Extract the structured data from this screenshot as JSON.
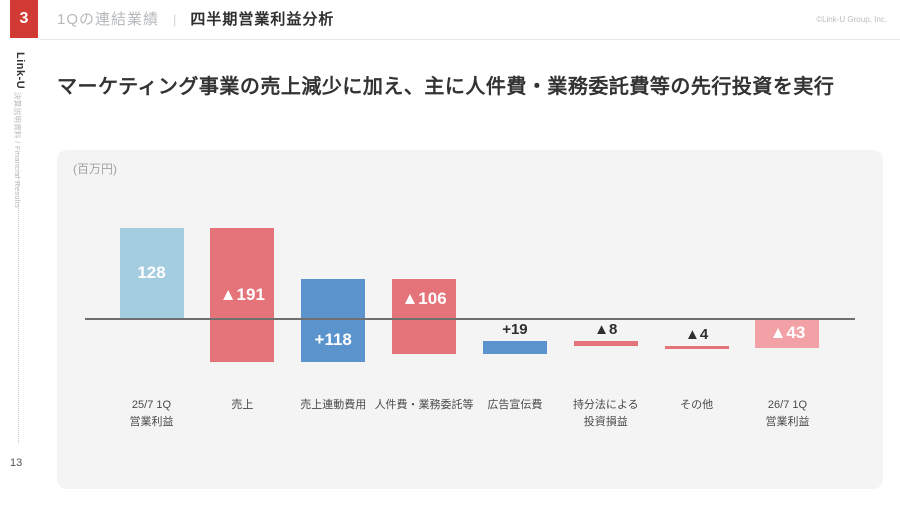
{
  "header": {
    "section_number": "3",
    "section_label": "1Qの連結業績",
    "separator": "|",
    "page_title": "四半期営業利益分析",
    "copyright": "©Link-U Group, Inc."
  },
  "sidebar": {
    "brand": "Link-U",
    "subtitle": "決算説明資料 / Financial Results",
    "page_number": "13"
  },
  "main": {
    "headline": "マーケティング事業の売上減少に加え、主に人件費・業務委託費等の先行投資を実行",
    "unit_label": "(百万円)"
  },
  "chart_data": {
    "type": "bar",
    "subtype": "waterfall",
    "title": "四半期営業利益分析",
    "unit": "百万円",
    "categories": [
      "25/7 1Q\n営業利益",
      "売上",
      "売上連動費用",
      "人件費・業務委託等",
      "広告宣伝費",
      "持分法による\n投資損益",
      "その他",
      "26/7 1Q\n営業利益"
    ],
    "values": [
      128,
      -191,
      118,
      -106,
      19,
      -8,
      -4,
      -43
    ],
    "labels": [
      "128",
      "▲191",
      "+118",
      "▲106",
      "+19",
      "▲8",
      "▲4",
      "▲43"
    ],
    "bar_roles": [
      "start",
      "delta",
      "delta",
      "delta",
      "delta",
      "delta",
      "delta",
      "total"
    ],
    "label_positions": [
      "inside-center",
      "inside-center",
      "inside-below-axis",
      "inside-above-axis",
      "above-bar",
      "above-bar",
      "above-bar",
      "inside-center"
    ],
    "colors": {
      "start": "#a5cde0",
      "increase": "#5b93cc",
      "decrease": "#e4737a",
      "total": "#f2a2a6",
      "axis": "#6f6f6f",
      "label_inside": "#ffffff",
      "label_outside": "#2f2f2f"
    },
    "axis_range_approx": [
      -70,
      135
    ],
    "grid": false,
    "legend": false
  }
}
